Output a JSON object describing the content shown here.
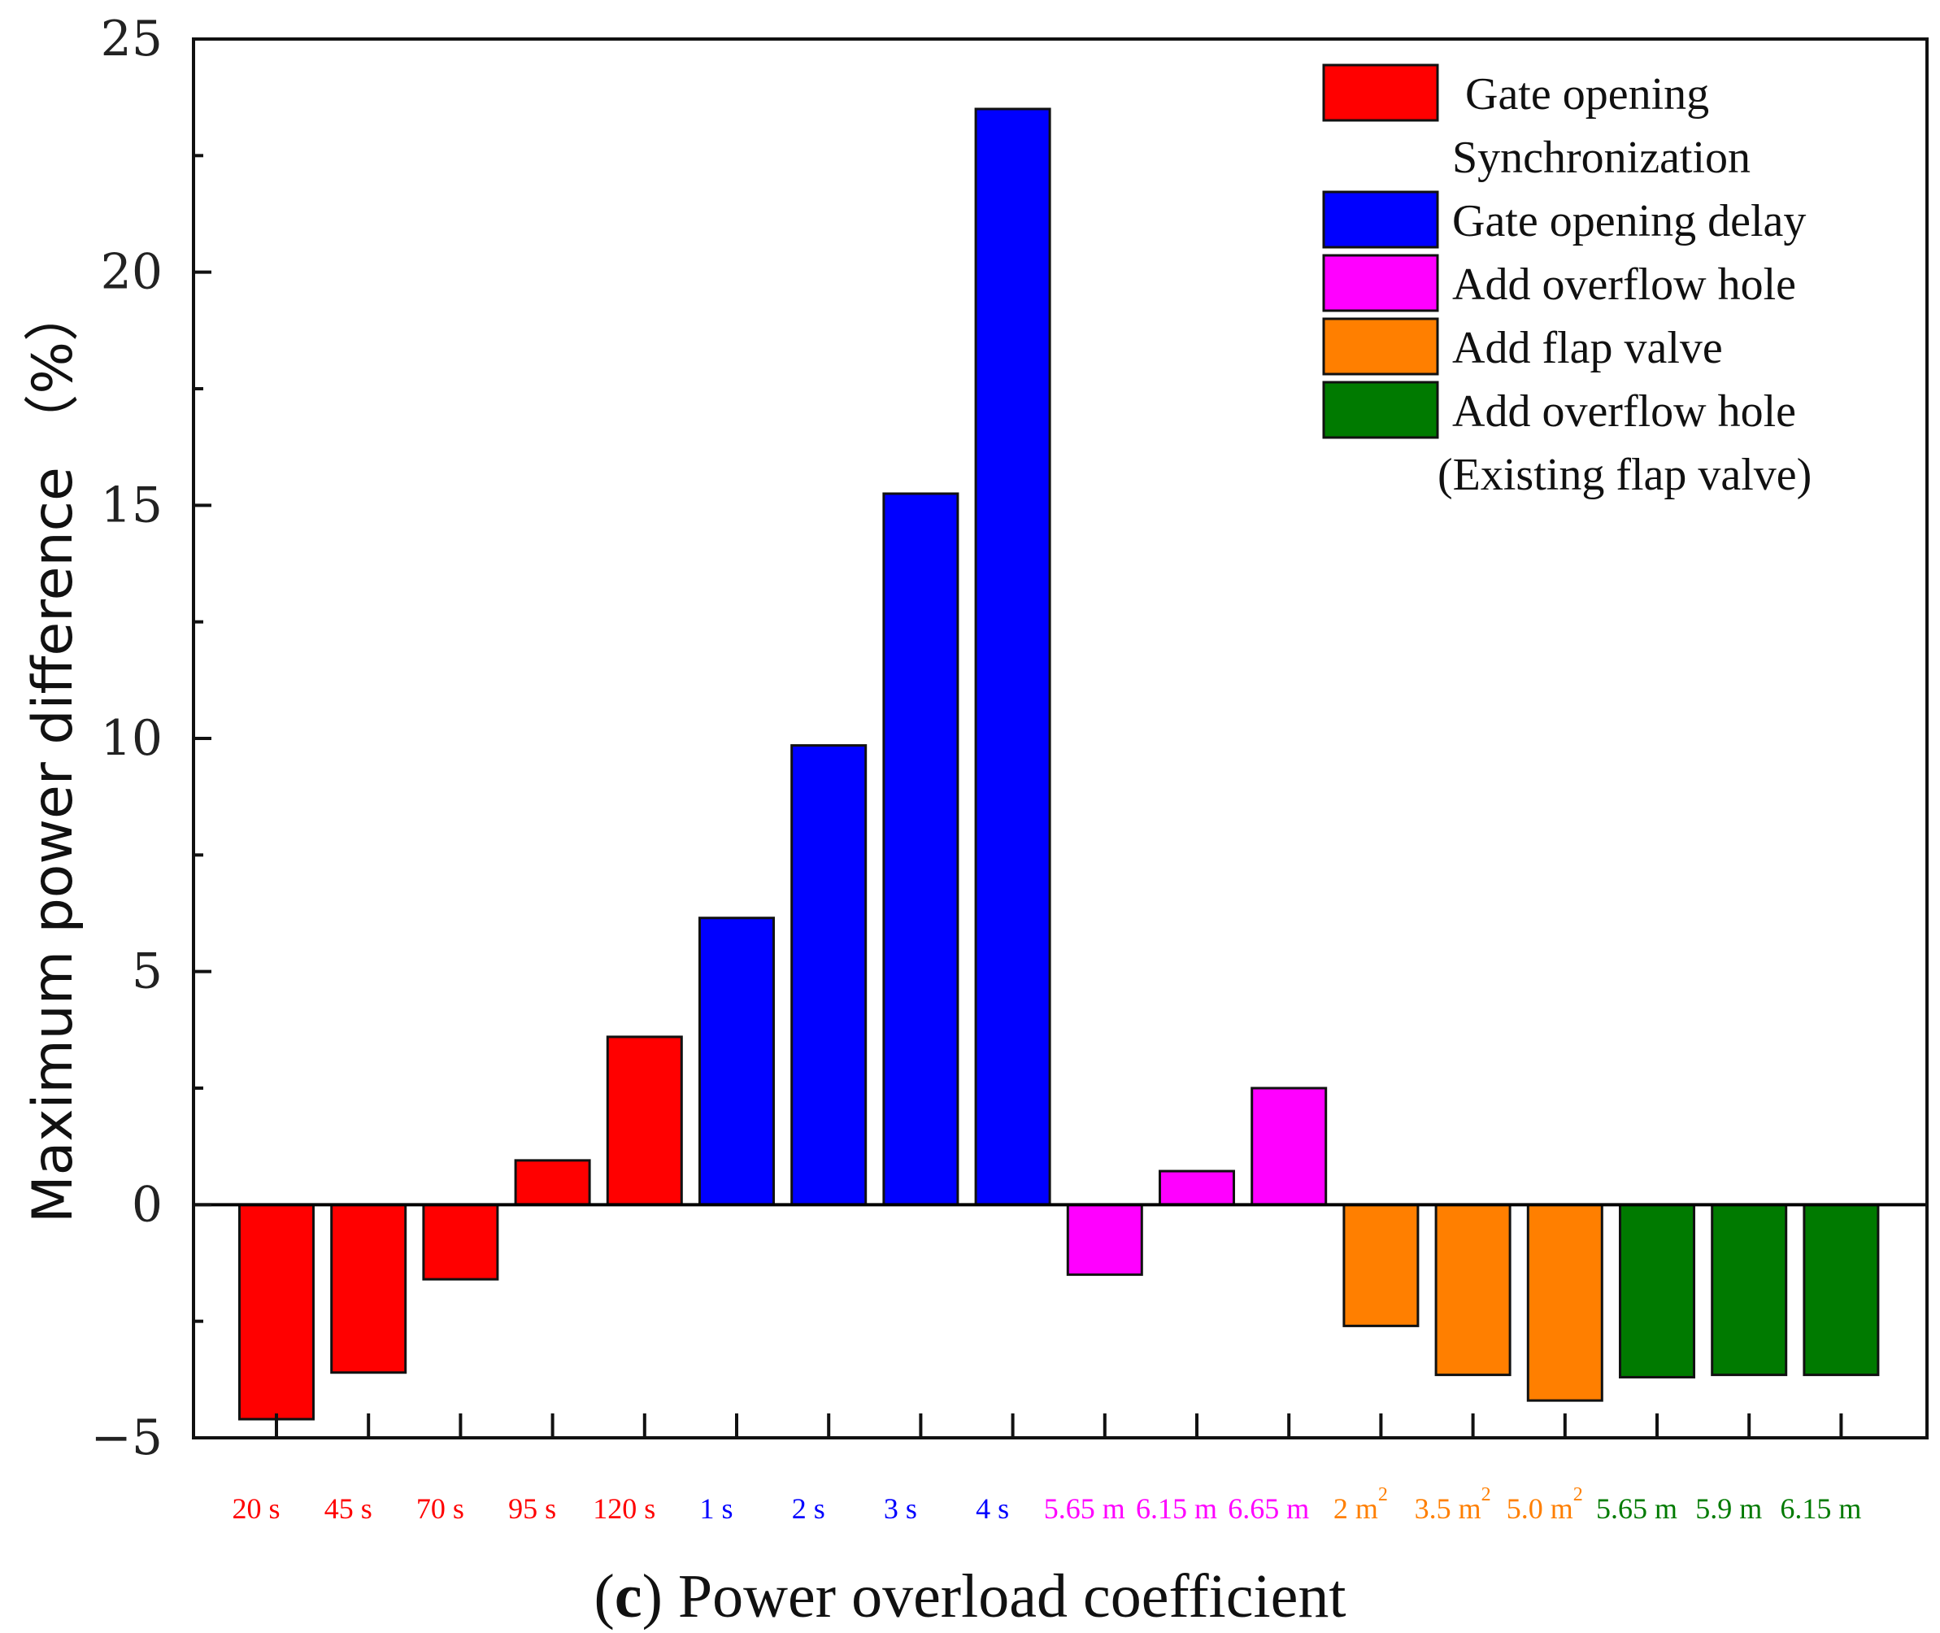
{
  "chart_data": {
    "type": "bar",
    "title": "",
    "xlabel": "",
    "ylabel": "Maximum power difference （%）",
    "ylim": [
      -5,
      25
    ],
    "yticks": [
      25,
      20,
      15,
      10,
      5,
      0,
      -5
    ],
    "ytick_labels": [
      "25",
      "20",
      "15",
      "10",
      "5",
      "0",
      "−5"
    ],
    "grid": false,
    "legend_position": "top-right",
    "groups": [
      {
        "name": "Gate opening Synchronization",
        "color": "#ff0000"
      },
      {
        "name": "Gate opening delay",
        "color": "#0000ff"
      },
      {
        "name": "Add overflow hole",
        "color": "#ff00ff"
      },
      {
        "name": "Add flap valve",
        "color": "#ff7f00"
      },
      {
        "name": "Add overflow hole (Existing flap valve)",
        "color": "#007a00"
      }
    ],
    "categories": [
      {
        "label": "20 s",
        "sup": "",
        "value": -4.6,
        "group": 0
      },
      {
        "label": "45 s",
        "sup": "",
        "value": -3.6,
        "group": 0
      },
      {
        "label": "70 s",
        "sup": "",
        "value": -1.6,
        "group": 0
      },
      {
        "label": "95 s",
        "sup": "",
        "value": 0.95,
        "group": 0
      },
      {
        "label": "120 s",
        "sup": "",
        "value": 3.6,
        "group": 0
      },
      {
        "label": "1 s",
        "sup": "",
        "value": 6.15,
        "group": 1
      },
      {
        "label": "2 s",
        "sup": "",
        "value": 9.85,
        "group": 1
      },
      {
        "label": "3 s",
        "sup": "",
        "value": 15.25,
        "group": 1
      },
      {
        "label": "4 s",
        "sup": "",
        "value": 23.5,
        "group": 1
      },
      {
        "label": "5.65 m",
        "sup": "",
        "value": -1.5,
        "group": 2
      },
      {
        "label": "6.15 m",
        "sup": "",
        "value": 0.72,
        "group": 2
      },
      {
        "label": "6.65 m",
        "sup": "",
        "value": 2.5,
        "group": 2
      },
      {
        "label": "2 m",
        "sup": "2",
        "value": -2.6,
        "group": 3
      },
      {
        "label": "3.5 m",
        "sup": "2",
        "value": -3.65,
        "group": 3
      },
      {
        "label": "5.0 m",
        "sup": "2",
        "value": -4.2,
        "group": 3
      },
      {
        "label": "5.65 m",
        "sup": "",
        "value": -3.7,
        "group": 4
      },
      {
        "label": "5.9 m",
        "sup": "",
        "value": -3.65,
        "group": 4
      },
      {
        "label": "6.15 m",
        "sup": "",
        "value": -3.65,
        "group": 4
      }
    ]
  },
  "legend": {
    "entries": [
      {
        "lines": [
          "Gate opening",
          "Synchronization"
        ],
        "color": "#ff0000"
      },
      {
        "lines": [
          "Gate opening delay"
        ],
        "color": "#0000ff"
      },
      {
        "lines": [
          "Add overflow hole"
        ],
        "color": "#ff00ff"
      },
      {
        "lines": [
          "Add flap valve"
        ],
        "color": "#ff7f00"
      },
      {
        "lines": [
          "Add overflow hole",
          "(Existing flap valve)"
        ],
        "color": "#007a00"
      }
    ]
  },
  "caption": {
    "label": "c",
    "text": " Power overload coefficient"
  }
}
